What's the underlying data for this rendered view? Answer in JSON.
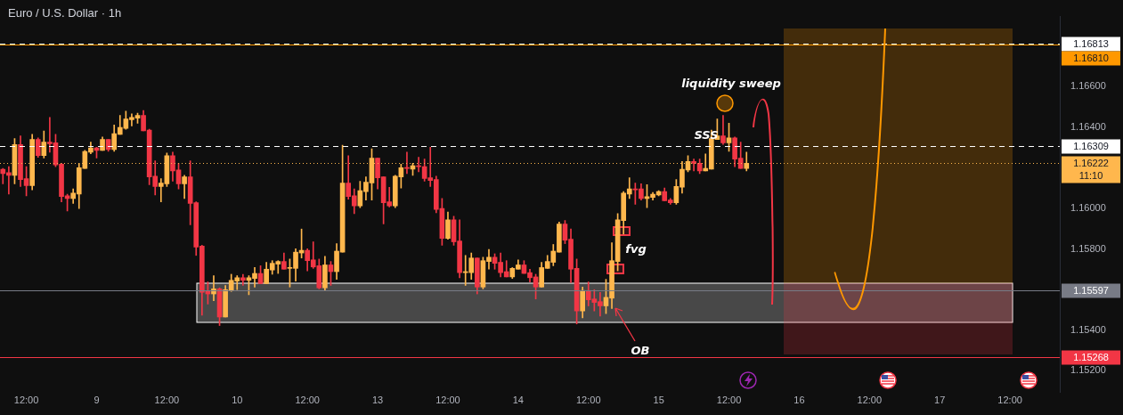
{
  "chart_data": {
    "type": "candlestick",
    "title": "Euro / U.S. Dollar · 1h",
    "categories": [
      null,
      null,
      null,
      null,
      "12:00",
      null,
      null,
      null,
      null,
      null,
      null,
      null,
      null,
      null,
      null,
      null,
      "9",
      null,
      null,
      null,
      null,
      null,
      null,
      null,
      null,
      null,
      null,
      null,
      "12:00",
      null,
      null,
      null,
      null,
      null,
      null,
      null,
      null,
      null,
      null,
      null,
      "10",
      null,
      null,
      null,
      null,
      null,
      null,
      null,
      null,
      null,
      null,
      null,
      "12:00",
      null,
      null,
      null,
      null,
      null,
      null,
      null,
      null,
      null,
      null,
      null,
      "13",
      null,
      null,
      null,
      null,
      null,
      null,
      null,
      null,
      null,
      null,
      null,
      "12:00",
      null,
      null,
      null,
      null,
      null,
      null,
      null,
      null,
      null,
      null,
      null,
      "14",
      null,
      null,
      null,
      null,
      null,
      null,
      null,
      null,
      null,
      null,
      null,
      "12:00",
      null,
      null,
      null,
      null,
      null,
      null,
      null,
      null,
      null,
      null,
      null,
      "15",
      null,
      null,
      null,
      null,
      null,
      null,
      null,
      null,
      null,
      null,
      null,
      "12:00",
      null,
      null,
      null,
      null,
      null,
      null,
      null,
      null,
      null,
      null,
      null,
      "16",
      null,
      null,
      null,
      null,
      null,
      null,
      null,
      null,
      null,
      null,
      null,
      "12:00",
      null,
      null,
      null,
      null,
      null,
      null,
      null,
      null,
      null,
      null,
      null,
      "17",
      null,
      null,
      null,
      null,
      null,
      null,
      null,
      null,
      null,
      null,
      null,
      "12:00",
      null,
      null,
      null,
      null,
      null,
      null,
      null,
      null
    ],
    "ohlc": [
      [
        1.16193,
        1.16197,
        1.16121,
        1.16172
      ],
      [
        1.16176,
        1.16206,
        1.1607,
        1.16163
      ],
      [
        1.16163,
        1.16344,
        1.16121,
        1.16315
      ],
      [
        1.16315,
        1.16357,
        1.16108,
        1.16142
      ],
      [
        1.16147,
        1.16206,
        1.16062,
        1.16112
      ],
      [
        1.16112,
        1.16365,
        1.16091,
        1.1634
      ],
      [
        1.1634,
        1.16348,
        1.16252,
        1.1626
      ],
      [
        1.1626,
        1.16382,
        1.16248,
        1.16327
      ],
      [
        1.16327,
        1.16449,
        1.16277,
        1.16319
      ],
      [
        1.16323,
        1.16365,
        1.16206,
        1.16214
      ],
      [
        1.16218,
        1.16222,
        1.16032,
        1.16058
      ],
      [
        1.16062,
        1.1607,
        1.15987,
        1.16049
      ],
      [
        1.16049,
        1.16096,
        1.16024,
        1.16075
      ],
      [
        1.1607,
        1.16222,
        1.15999,
        1.16201
      ],
      [
        1.16197,
        1.16286,
        1.16197,
        1.16281
      ],
      [
        1.16277,
        1.16327,
        1.16269,
        1.16298
      ],
      [
        1.16298,
        1.16302,
        1.16248,
        1.16286
      ],
      [
        1.16286,
        1.16352,
        1.16286,
        1.1634
      ],
      [
        1.1634,
        1.1634,
        1.16281,
        1.1629
      ],
      [
        1.1629,
        1.16411,
        1.16281,
        1.16369
      ],
      [
        1.16365,
        1.16458,
        1.16365,
        1.16399
      ],
      [
        1.16394,
        1.16479,
        1.1639,
        1.16441
      ],
      [
        1.16437,
        1.16466,
        1.16407,
        1.16449
      ],
      [
        1.16445,
        1.1647,
        1.1642,
        1.16458
      ],
      [
        1.16458,
        1.16483,
        1.16382,
        1.16382
      ],
      [
        1.16386,
        1.1639,
        1.16117,
        1.16155
      ],
      [
        1.16159,
        1.16235,
        1.16066,
        1.16108
      ],
      [
        1.16108,
        1.16147,
        1.16032,
        1.16125
      ],
      [
        1.16121,
        1.16273,
        1.16108,
        1.1626
      ],
      [
        1.1626,
        1.16277,
        1.16134,
        1.16185
      ],
      [
        1.16189,
        1.16222,
        1.16096,
        1.16121
      ],
      [
        1.16121,
        1.16163,
        1.16049,
        1.16155
      ],
      [
        1.16155,
        1.16235,
        1.15919,
        1.16024
      ],
      [
        1.16028,
        1.16032,
        1.15768,
        1.15809
      ],
      [
        1.15814,
        1.15818,
        1.15473,
        1.15586
      ],
      [
        1.1559,
        1.15637,
        1.15528,
        1.15578
      ],
      [
        1.15578,
        1.15668,
        1.15544,
        1.15603
      ],
      [
        1.15603,
        1.15608,
        1.15422,
        1.15464
      ],
      [
        1.15464,
        1.1562,
        1.15464,
        1.15599
      ],
      [
        1.15595,
        1.15675,
        1.1559,
        1.15645
      ],
      [
        1.15641,
        1.15668,
        1.15599,
        1.15658
      ],
      [
        1.15658,
        1.15675,
        1.1562,
        1.15645
      ],
      [
        1.15645,
        1.15668,
        1.15574,
        1.15658
      ],
      [
        1.15654,
        1.15708,
        1.15612,
        1.15679
      ],
      [
        1.15679,
        1.15717,
        1.15629,
        1.15629
      ],
      [
        1.15629,
        1.15734,
        1.15629,
        1.157
      ],
      [
        1.15696,
        1.15742,
        1.15675,
        1.15729
      ],
      [
        1.15725,
        1.15742,
        1.15679,
        1.15738
      ],
      [
        1.15738,
        1.1578,
        1.157,
        1.157
      ],
      [
        1.15704,
        1.1575,
        1.15612,
        1.15708
      ],
      [
        1.15704,
        1.15801,
        1.15641,
        1.15784
      ],
      [
        1.1578,
        1.15898,
        1.15755,
        1.15793
      ],
      [
        1.15793,
        1.15801,
        1.15692,
        1.15742
      ],
      [
        1.15746,
        1.15835,
        1.15704,
        1.15711
      ],
      [
        1.15717,
        1.1575,
        1.15603,
        1.15608
      ],
      [
        1.15608,
        1.15763,
        1.15595,
        1.15721
      ],
      [
        1.15721,
        1.15738,
        1.1562,
        1.15688
      ],
      [
        1.15688,
        1.15826,
        1.1565,
        1.15789
      ],
      [
        1.15784,
        1.16311,
        1.15784,
        1.16125
      ],
      [
        1.16125,
        1.1626,
        1.16045,
        1.16058
      ],
      [
        1.16062,
        1.16096,
        1.15974,
        1.16012
      ],
      [
        1.16012,
        1.16134,
        1.16003,
        1.16087
      ],
      [
        1.16083,
        1.16155,
        1.16041,
        1.16129
      ],
      [
        1.16125,
        1.16294,
        1.16041,
        1.16248
      ],
      [
        1.16248,
        1.16248,
        1.16096,
        1.16151
      ],
      [
        1.16155,
        1.16155,
        1.15923,
        1.16028
      ],
      [
        1.16032,
        1.16104,
        1.16007,
        1.16012
      ],
      [
        1.16012,
        1.16163,
        1.16003,
        1.16159
      ],
      [
        1.16155,
        1.16218,
        1.161,
        1.16201
      ],
      [
        1.16201,
        1.16277,
        1.16172,
        1.16197
      ],
      [
        1.16193,
        1.16222,
        1.16163,
        1.1621
      ],
      [
        1.1621,
        1.16252,
        1.1618,
        1.16206
      ],
      [
        1.16206,
        1.16243,
        1.16134,
        1.16147
      ],
      [
        1.16151,
        1.16302,
        1.16108,
        1.16138
      ],
      [
        1.16142,
        1.16159,
        1.15978,
        1.15995
      ],
      [
        1.15999,
        1.16049,
        1.15818,
        1.15852
      ],
      [
        1.15852,
        1.15982,
        1.15848,
        1.15944
      ],
      [
        1.15944,
        1.15961,
        1.15818,
        1.15835
      ],
      [
        1.15839,
        1.15944,
        1.15658,
        1.15683
      ],
      [
        1.15683,
        1.15768,
        1.1562,
        1.15688
      ],
      [
        1.15683,
        1.1578,
        1.1565,
        1.15755
      ],
      [
        1.15755,
        1.15755,
        1.15578,
        1.15612
      ],
      [
        1.15612,
        1.15759,
        1.15603,
        1.15742
      ],
      [
        1.15738,
        1.15797,
        1.157,
        1.15759
      ],
      [
        1.15759,
        1.15776,
        1.157,
        1.15729
      ],
      [
        1.15734,
        1.1578,
        1.15662,
        1.15683
      ],
      [
        1.15688,
        1.15742,
        1.15662,
        1.15662
      ],
      [
        1.15662,
        1.15708,
        1.15654,
        1.15704
      ],
      [
        1.157,
        1.15746,
        1.157,
        1.15721
      ],
      [
        1.15721,
        1.15742,
        1.15679,
        1.15679
      ],
      [
        1.15683,
        1.157,
        1.15637,
        1.15658
      ],
      [
        1.15662,
        1.15675,
        1.15553,
        1.15612
      ],
      [
        1.15612,
        1.15734,
        1.15612,
        1.15708
      ],
      [
        1.15704,
        1.15768,
        1.15704,
        1.15738
      ],
      [
        1.15734,
        1.15822,
        1.15717,
        1.15789
      ],
      [
        1.15784,
        1.15932,
        1.15784,
        1.15923
      ],
      [
        1.15923,
        1.1594,
        1.15826,
        1.15843
      ],
      [
        1.15848,
        1.15898,
        1.15633,
        1.157
      ],
      [
        1.15704,
        1.1575,
        1.1543,
        1.15494
      ],
      [
        1.15494,
        1.15612,
        1.1546,
        1.15595
      ],
      [
        1.15595,
        1.15637,
        1.15519,
        1.15549
      ],
      [
        1.15553,
        1.15599,
        1.15494,
        1.15536
      ],
      [
        1.1554,
        1.15586,
        1.15469,
        1.15519
      ],
      [
        1.15519,
        1.1565,
        1.15481,
        1.15561
      ],
      [
        1.15557,
        1.1583,
        1.15506,
        1.15742
      ],
      [
        1.15738,
        1.15974,
        1.15692,
        1.15944
      ],
      [
        1.1594,
        1.16083,
        1.15873,
        1.16075
      ],
      [
        1.1607,
        1.16151,
        1.16049,
        1.16096
      ],
      [
        1.16096,
        1.16125,
        1.1602,
        1.16091
      ],
      [
        1.16096,
        1.16121,
        1.16041,
        1.16049
      ],
      [
        1.16049,
        1.16117,
        1.16003,
        1.16058
      ],
      [
        1.16054,
        1.16079,
        1.16041,
        1.1607
      ],
      [
        1.16066,
        1.16087,
        1.16062,
        1.16083
      ],
      [
        1.16083,
        1.161,
        1.16037,
        1.16037
      ],
      [
        1.16041,
        1.16049,
        1.1602,
        1.16028
      ],
      [
        1.16028,
        1.16142,
        1.1602,
        1.16108
      ],
      [
        1.16104,
        1.16231,
        1.16075,
        1.16193
      ],
      [
        1.16189,
        1.1626,
        1.1618,
        1.16231
      ],
      [
        1.16231,
        1.16243,
        1.16185,
        1.16222
      ],
      [
        1.16222,
        1.16243,
        1.16172,
        1.16185
      ],
      [
        1.16185,
        1.16269,
        1.16185,
        1.16197
      ],
      [
        1.16193,
        1.16386,
        1.16193,
        1.16344
      ],
      [
        1.1634,
        1.16441,
        1.1634,
        1.16357
      ],
      [
        1.16357,
        1.16458,
        1.16315,
        1.16323
      ],
      [
        1.16323,
        1.1642,
        1.16281,
        1.16348
      ],
      [
        1.16348,
        1.16352,
        1.16206,
        1.16243
      ],
      [
        1.16248,
        1.16327,
        1.16197,
        1.16197
      ],
      [
        1.16197,
        1.16277,
        1.16185,
        1.16222
      ],
      null,
      null,
      null,
      null,
      null,
      null,
      null,
      null,
      null,
      null,
      null,
      null,
      null,
      null,
      null,
      null,
      null,
      null,
      null,
      null,
      null,
      null,
      null,
      null,
      null,
      null,
      null,
      null,
      null,
      null,
      null,
      null,
      null,
      null,
      null,
      null,
      null,
      null,
      null,
      null,
      null,
      null,
      null,
      null,
      null,
      null,
      null,
      null,
      null,
      null,
      null,
      null,
      null
    ],
    "colors": [
      "#f23645",
      "#f23645",
      "#ffb74d",
      "#f23645",
      "#f23645",
      "#ffb74d",
      "#f23645",
      "#ffb74d",
      "#f23645",
      "#f23645",
      "#f23645",
      "#f23645",
      "#ffb74d",
      "#ffb74d",
      "#ffb74d",
      "#ffb74d",
      "#f23645",
      "#ffb74d",
      "#f23645",
      "#ffb74d",
      "#ffb74d",
      "#ffb74d",
      "#ffb74d",
      "#ffb74d",
      "#f23645",
      "#f23645",
      "#f23645",
      "#ffb74d",
      "#ffb74d",
      "#f23645",
      "#f23645",
      "#ffb74d",
      "#f23645",
      "#f23645",
      "#f23645",
      "#f23645",
      "#ffb74d",
      "#f23645",
      "#ffb74d",
      "#ffb74d",
      "#ffb74d",
      "#f23645",
      "#ffb74d",
      "#ffb74d",
      "#f23645",
      "#ffb74d",
      "#ffb74d",
      "#ffb74d",
      "#f23645",
      "#ffb74d",
      "#ffb74d",
      "#ffb74d",
      "#f23645",
      "#f23645",
      "#f23645",
      "#ffb74d",
      "#f23645",
      "#ffb74d",
      "#ffb74d",
      "#f23645",
      "#f23645",
      "#ffb74d",
      "#ffb74d",
      "#ffb74d",
      "#f23645",
      "#f23645",
      "#f23645",
      "#ffb74d",
      "#ffb74d",
      "#f23645",
      "#ffb74d",
      "#f23645",
      "#f23645",
      "#f23645",
      "#f23645",
      "#f23645",
      "#ffb74d",
      "#f23645",
      "#f23645",
      "#ffb74d",
      "#ffb74d",
      "#f23645",
      "#ffb74d",
      "#ffb74d",
      "#f23645",
      "#f23645",
      "#f23645",
      "#ffb74d",
      "#ffb74d",
      "#f23645",
      "#f23645",
      "#f23645",
      "#ffb74d",
      "#ffb74d",
      "#ffb74d",
      "#ffb74d",
      "#f23645",
      "#f23645",
      "#f23645",
      "#ffb74d",
      "#f23645",
      "#f23645",
      "#f23645",
      "#ffb74d",
      "#ffb74d",
      "#ffb74d",
      "#ffb74d",
      "#ffb74d",
      "#f23645",
      "#f23645",
      "#ffb74d",
      "#ffb74d",
      "#ffb74d",
      "#f23645",
      "#f23645",
      "#ffb74d",
      "#ffb74d",
      "#ffb74d",
      "#f23645",
      "#f23645",
      "#ffb74d",
      "#ffb74d",
      "#ffb74d",
      "#f23645",
      "#ffb74d",
      "#f23645",
      "#f23645",
      "#ffb74d",
      null,
      null,
      null,
      null,
      null,
      null,
      null,
      null,
      null,
      null,
      null,
      null,
      null,
      null,
      null,
      null,
      null,
      null,
      null,
      null,
      null,
      null,
      null,
      null,
      null,
      null,
      null,
      null,
      null,
      null,
      null,
      null,
      null,
      null,
      null,
      null,
      null,
      null,
      null,
      null,
      null,
      null,
      null,
      null,
      null,
      null,
      null,
      null,
      null,
      null,
      null,
      null,
      null
    ],
    "ylim": [
      1.15095,
      1.16946
    ],
    "yticks": [
      {
        "value": 1.152,
        "label": "1.15200"
      },
      {
        "value": 1.154,
        "label": "1.15400"
      },
      {
        "value": 1.158,
        "label": "1.15800"
      },
      {
        "value": 1.16,
        "label": "1.16000"
      },
      {
        "value": 1.164,
        "label": "1.16400"
      },
      {
        "value": 1.166,
        "label": "1.16600"
      }
    ],
    "ref_lines": [
      {
        "axis": "y",
        "value": 1.16813,
        "label": "1.16813",
        "color": "#ffffff",
        "line_style": "dashed"
      },
      {
        "axis": "y",
        "value": 1.1681,
        "label": "1.16810",
        "color": "#ff9800",
        "line_style": "solid"
      },
      {
        "axis": "y",
        "value": 1.16309,
        "label": "1.16309",
        "color": "#ffffff",
        "line_style": "dashed"
      },
      {
        "axis": "y",
        "value": 1.16222,
        "label": "1.16222\n11:10",
        "color": "#ffb74d",
        "line_style": "dotted"
      },
      {
        "axis": "y",
        "value": 1.15597,
        "label": "1.15597",
        "color": "#787b86",
        "line_style": "solid"
      },
      {
        "axis": "y",
        "value": 1.15268,
        "label": "1.15268",
        "color": "#f23645",
        "line_style": "solid"
      }
    ],
    "annotations": [
      "liquidity sweep",
      "SSS",
      "fvg",
      "OB"
    ]
  }
}
